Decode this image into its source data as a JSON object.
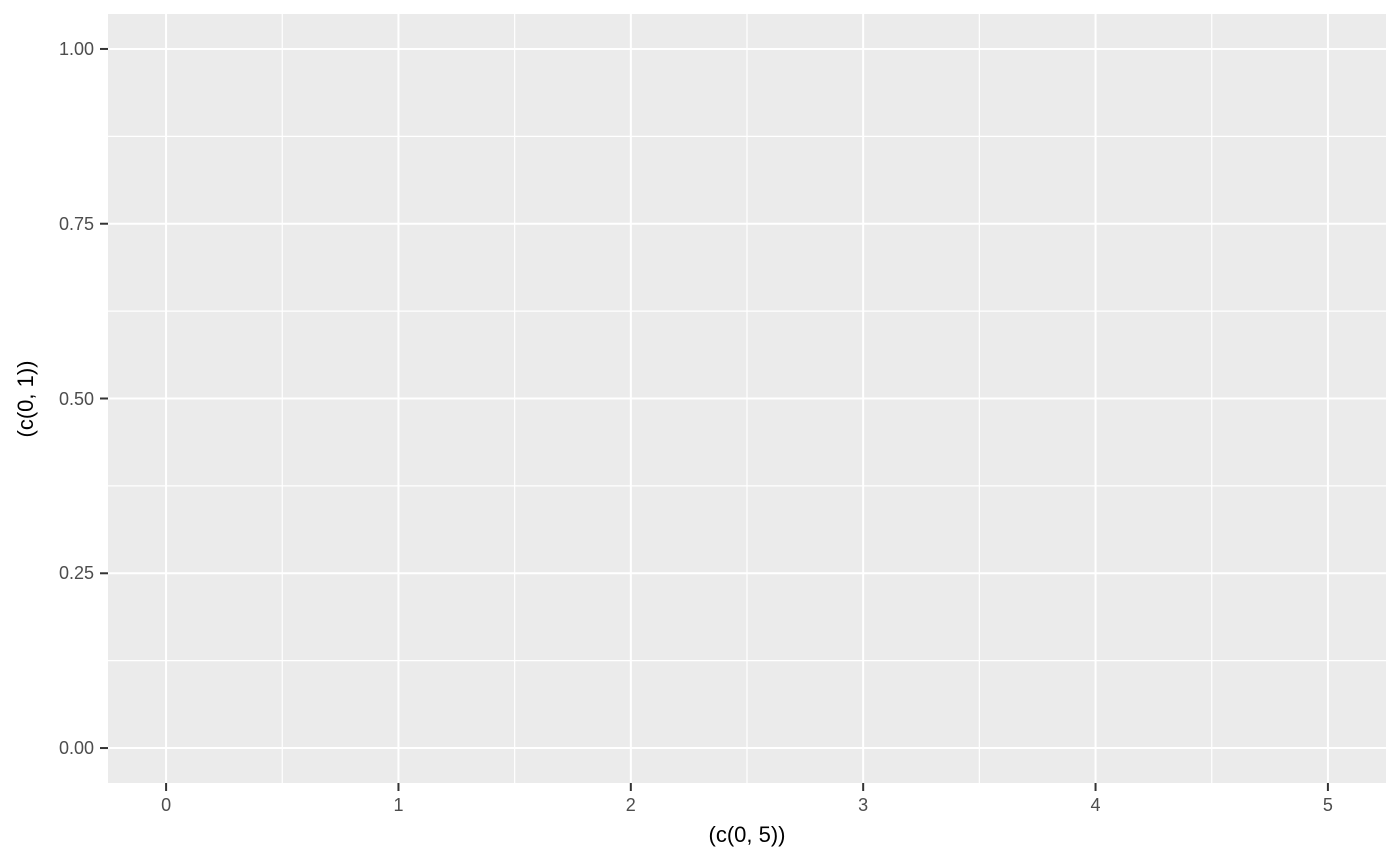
{
  "chart_data": {
    "type": "scatter",
    "title": "",
    "xlabel": "(c(0, 5))",
    "ylabel": "(c(0, 1))",
    "x_ticks": [
      0,
      1,
      2,
      3,
      4,
      5
    ],
    "x_tick_labels": [
      "0",
      "1",
      "2",
      "3",
      "4",
      "5"
    ],
    "y_ticks": [
      0.0,
      0.25,
      0.5,
      0.75,
      1.0
    ],
    "y_tick_labels": [
      "0.00",
      "0.25",
      "0.50",
      "0.75",
      "1.00"
    ],
    "xlim": [
      0,
      5
    ],
    "ylim": [
      0,
      1
    ],
    "expansion_mult": 0.05,
    "series": [],
    "grid": "major-and-minor",
    "legend_position": "none",
    "theme": {
      "panel_background": "#EBEBEB",
      "grid_major_color": "#FFFFFF",
      "grid_minor_color": "#FFFFFF",
      "grid_major_width": 2,
      "grid_minor_width": 1.2,
      "tick_mark_color": "#333333",
      "tick_mark_length": 8,
      "tick_mark_width": 2,
      "tick_label_color": "#4D4D4D",
      "axis_title_color": "#000000",
      "figure_background": "#FFFFFF"
    }
  }
}
